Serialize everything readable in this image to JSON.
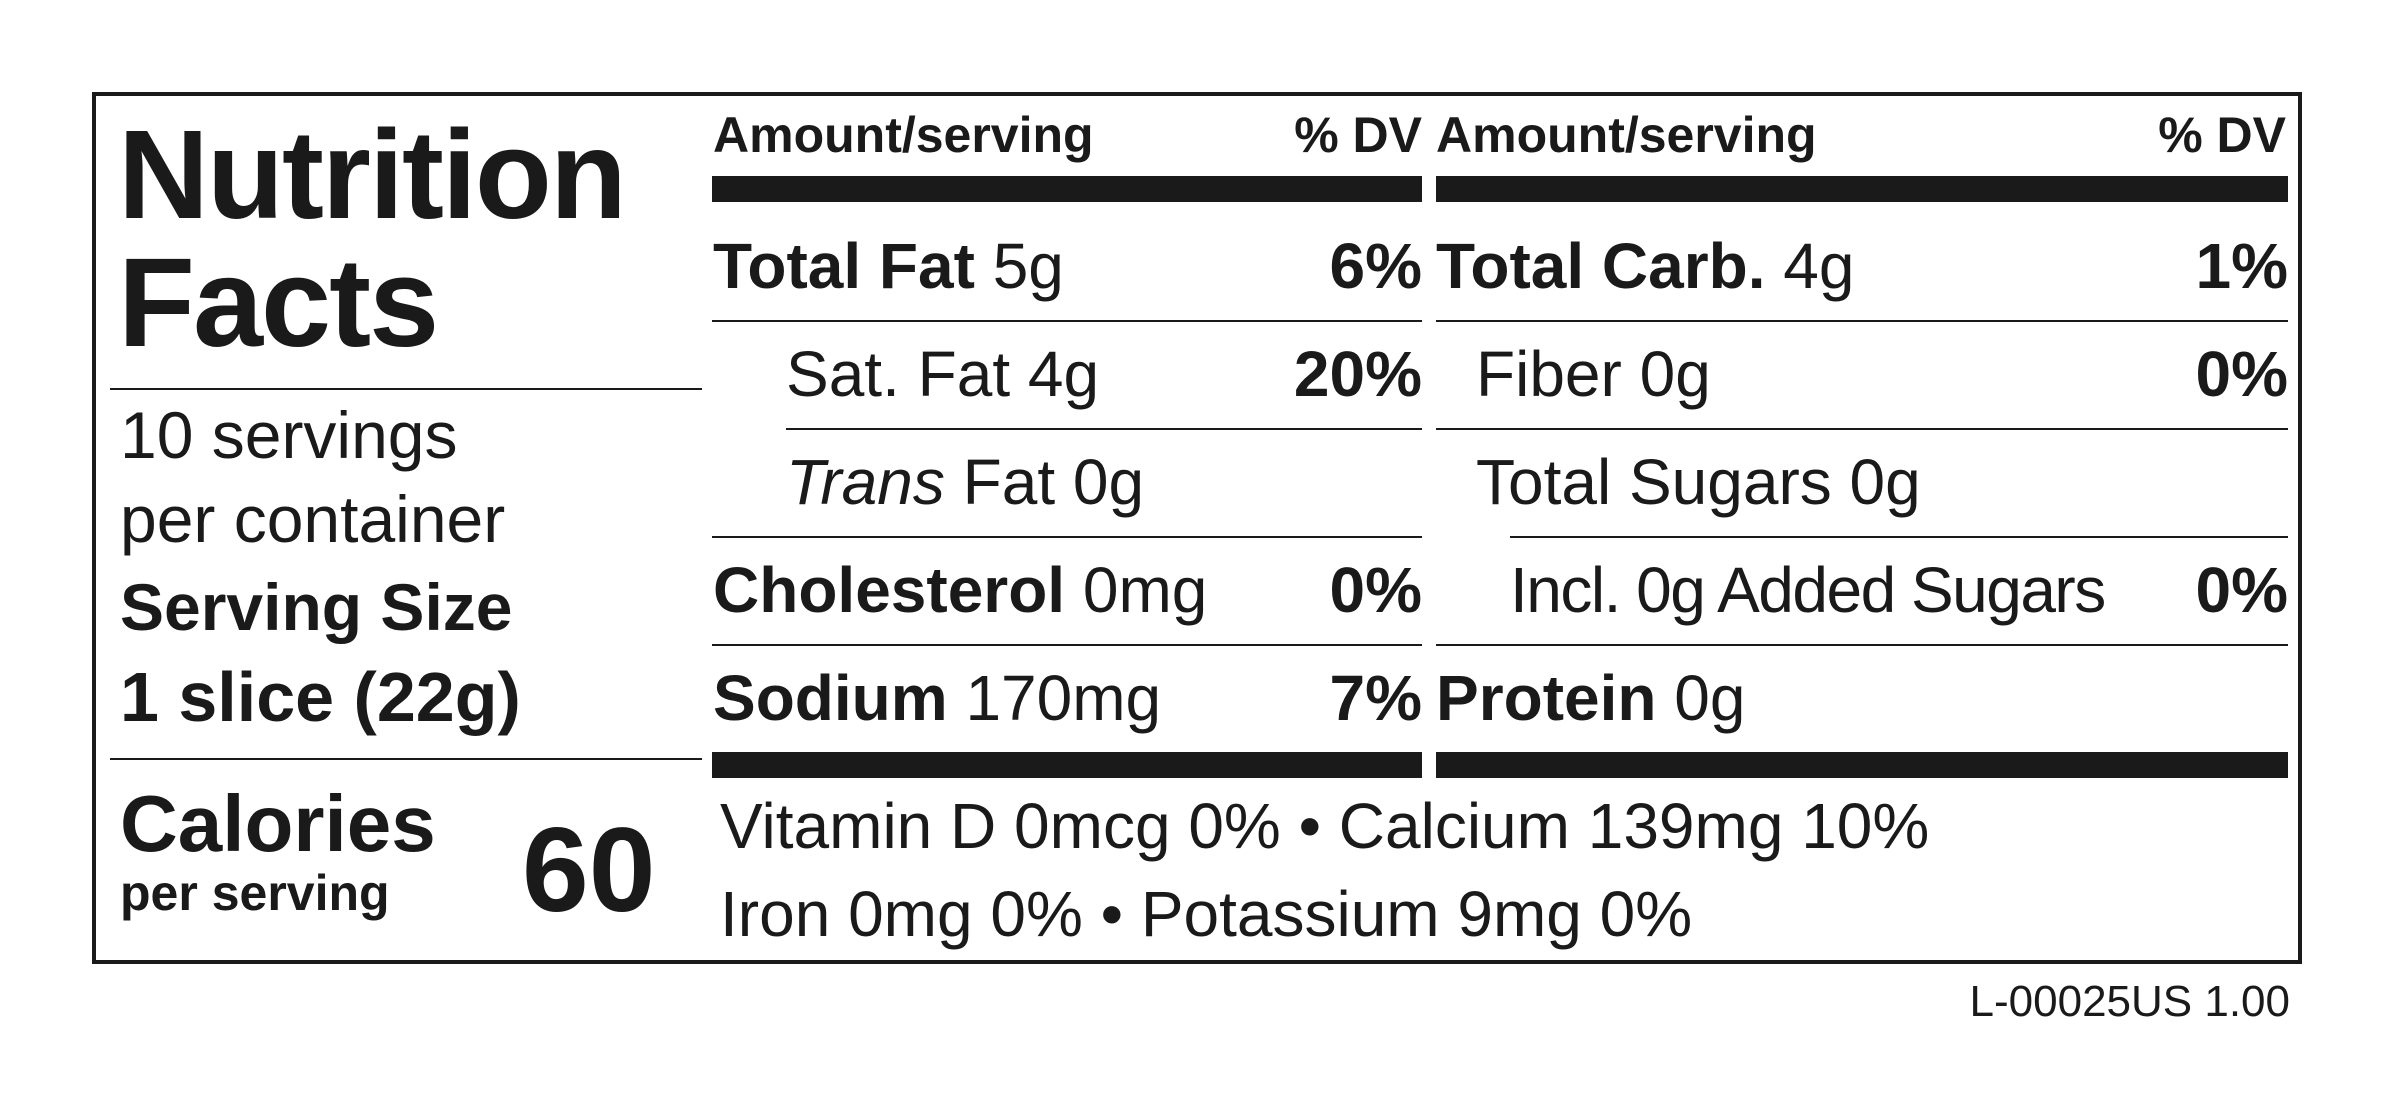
{
  "panel": {
    "title_line1": "Nutrition",
    "title_line2": "Facts",
    "servings_line1": "10 servings",
    "servings_line2": "per container",
    "serving_size_label": "Serving Size",
    "serving_size_value": "1 slice (22g)",
    "calories_label": "Calories",
    "calories_sub": "per serving",
    "calories_value": "60"
  },
  "headers": {
    "amount_per_serving": "Amount/serving",
    "percent_dv": "% DV"
  },
  "left_column": {
    "total_fat": {
      "label": "Total Fat",
      "amount": "5g",
      "dv": "6%"
    },
    "sat_fat": {
      "label": "Sat. Fat 4g",
      "dv": "20%"
    },
    "trans_fat": {
      "label_italic": "Trans",
      "label_rest": " Fat 0g"
    },
    "cholesterol": {
      "label": "Cholesterol",
      "amount": "0mg",
      "dv": "0%"
    },
    "sodium": {
      "label": "Sodium",
      "amount": "170mg",
      "dv": "7%"
    }
  },
  "right_column": {
    "total_carb": {
      "label": "Total Carb.",
      "amount": "4g",
      "dv": "1%"
    },
    "fiber": {
      "label": "Fiber 0g",
      "dv": "0%"
    },
    "total_sugars": {
      "label": "Total Sugars 0g"
    },
    "added_sugars": {
      "label": "Incl. 0g Added Sugars",
      "dv": "0%"
    },
    "protein": {
      "label": "Protein",
      "amount": "0g"
    }
  },
  "micronutrients": {
    "line1": "Vitamin D 0mcg 0% • Calcium 139mg 10%",
    "line2": "Iron 0mg 0% • Potassium 9mg 0%"
  },
  "label_code": "L-00025US 1.00"
}
